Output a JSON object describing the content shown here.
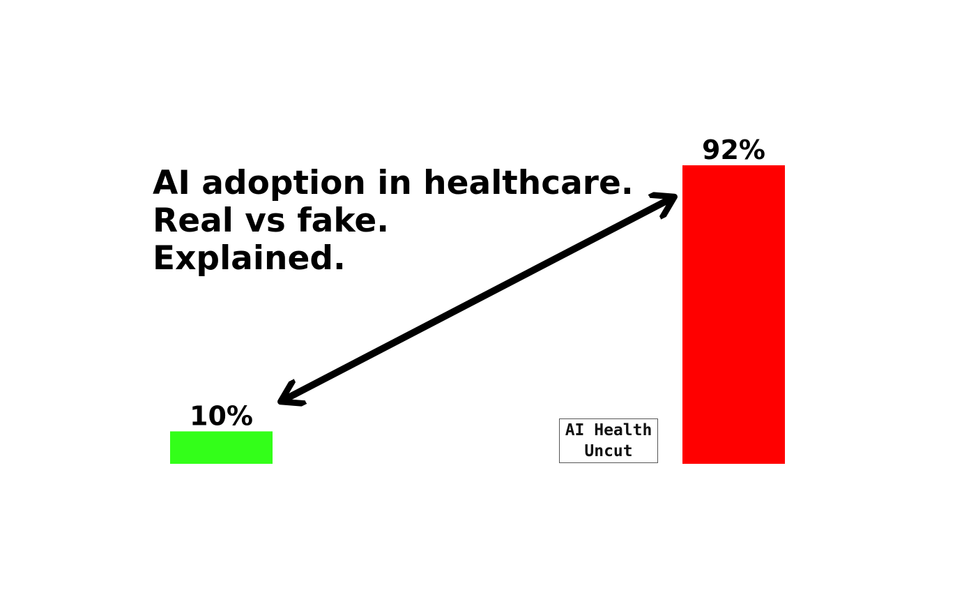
{
  "chart_data": {
    "type": "bar",
    "title": [
      "AI adoption in healthcare.",
      "Real vs fake.",
      "Explained."
    ],
    "categories": [
      null,
      null
    ],
    "values": [
      10,
      92
    ],
    "value_labels": [
      "10%",
      "92%"
    ],
    "colors": [
      "#33ff19",
      "#ff0000"
    ],
    "watermark": "AI Health Uncut"
  }
}
